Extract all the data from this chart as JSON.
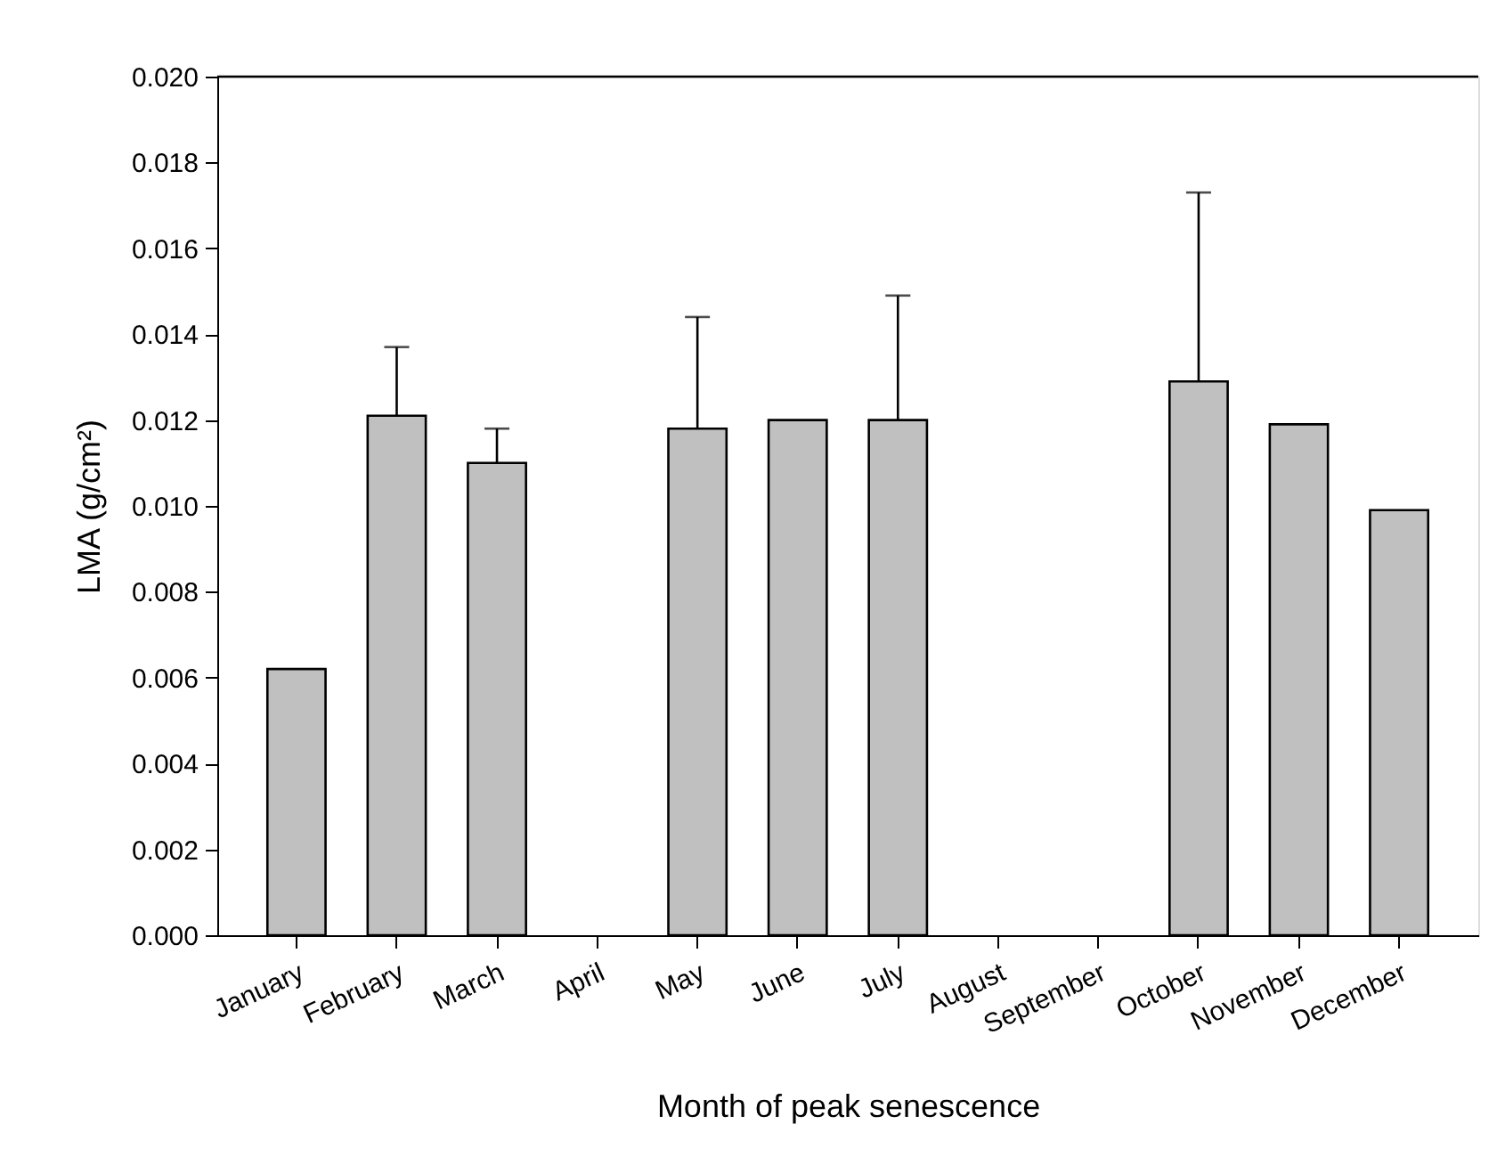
{
  "chart_data": {
    "type": "bar",
    "categories": [
      "January",
      "February",
      "March",
      "April",
      "May",
      "June",
      "July",
      "August",
      "September",
      "October",
      "November",
      "December"
    ],
    "values": [
      0.0062,
      0.0121,
      0.011,
      null,
      0.0118,
      0.012,
      0.012,
      null,
      null,
      0.0129,
      0.0119,
      0.0099
    ],
    "errors": [
      null,
      [
        0.0121,
        0.0137
      ],
      [
        0.011,
        0.0118
      ],
      null,
      [
        0.0118,
        0.0144
      ],
      null,
      [
        0.012,
        0.0149
      ],
      null,
      null,
      [
        0.0129,
        0.0173
      ],
      null,
      null
    ],
    "color": "#c0c0c0",
    "xlabel": "Month of peak senescence",
    "ylabel": "LMA (g/cm²)",
    "ylim": [
      0,
      0.02
    ],
    "yticks": [
      {
        "value": 0,
        "label": "0.000"
      },
      0.002,
      0.004,
      0.006,
      0.008,
      {
        "value": 0.01,
        "label": "0.010"
      },
      0.012,
      0.014,
      0.016,
      0.018,
      {
        "value": 0.02,
        "label": "0.020"
      }
    ],
    "grid": false
  }
}
